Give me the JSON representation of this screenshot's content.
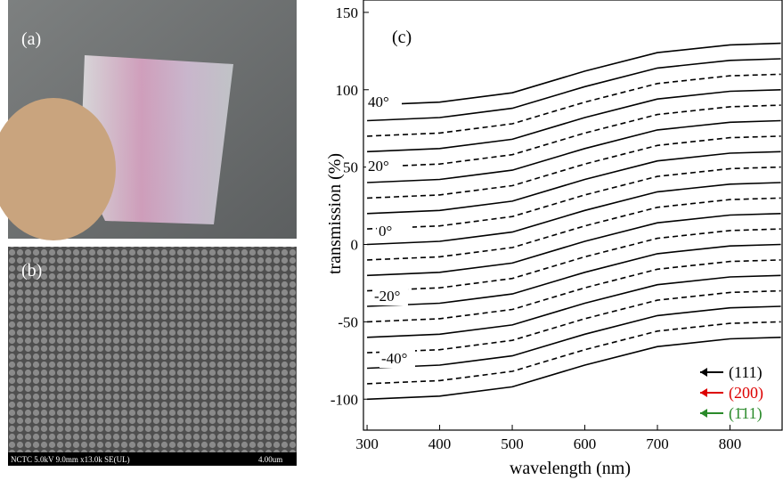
{
  "panels": {
    "a": "(a)",
    "b": "(b)",
    "sem_info": "NCTC 5.0kV 9.0mm x13.0k SE(UL)",
    "sem_scale": "4.00um"
  },
  "chart_data": {
    "type": "line",
    "panel_label": "(c)",
    "x_label": "wavelength (nm)",
    "y_label": "transmission (%)",
    "xlim": [
      295,
      873
    ],
    "ylim": [
      -120,
      158
    ],
    "xticks": [
      300,
      400,
      500,
      600,
      700,
      800
    ],
    "yticks": [
      -100,
      -50,
      0,
      50,
      100,
      150
    ],
    "x": [
      300,
      400,
      500,
      600,
      700,
      800,
      870
    ],
    "series": [
      {
        "color": "#000",
        "dashed": false,
        "values": [
          -100,
          -98,
          -92,
          -78,
          -66,
          -61,
          -60
        ]
      },
      {
        "color": "#000",
        "dashed": true,
        "values": [
          -90,
          -88,
          -82,
          -68,
          -56,
          -51,
          -50
        ]
      },
      {
        "color": "#000",
        "dashed": false,
        "values": [
          -80,
          -78,
          -72,
          -58,
          -46,
          -41,
          -40
        ]
      },
      {
        "color": "#000",
        "dashed": true,
        "values": [
          -70,
          -68,
          -62,
          -48,
          -36,
          -31,
          -30
        ]
      },
      {
        "color": "#000",
        "dashed": false,
        "values": [
          -60,
          -58,
          -52,
          -38,
          -26,
          -21,
          -20
        ]
      },
      {
        "color": "#000",
        "dashed": true,
        "values": [
          -50,
          -48,
          -42,
          -28,
          -16,
          -11,
          -10
        ]
      },
      {
        "color": "#000",
        "dashed": false,
        "values": [
          -40,
          -38,
          -32,
          -18,
          -6,
          -1,
          0
        ]
      },
      {
        "color": "#000",
        "dashed": true,
        "values": [
          -30,
          -28,
          -22,
          -8,
          4,
          9,
          10
        ]
      },
      {
        "color": "#000",
        "dashed": false,
        "values": [
          -20,
          -18,
          -12,
          2,
          14,
          19,
          20
        ]
      },
      {
        "color": "#000",
        "dashed": true,
        "values": [
          -10,
          -8,
          -2,
          12,
          24,
          29,
          30
        ]
      },
      {
        "color": "#000",
        "dashed": false,
        "values": [
          0,
          2,
          8,
          22,
          34,
          39,
          40
        ]
      },
      {
        "color": "#000",
        "dashed": true,
        "values": [
          10,
          12,
          18,
          32,
          44,
          49,
          50
        ]
      },
      {
        "color": "#000",
        "dashed": false,
        "values": [
          20,
          22,
          28,
          42,
          54,
          59,
          60
        ]
      },
      {
        "color": "#000",
        "dashed": true,
        "values": [
          30,
          32,
          38,
          52,
          64,
          69,
          70
        ]
      },
      {
        "color": "#000",
        "dashed": false,
        "values": [
          40,
          42,
          48,
          62,
          74,
          79,
          80
        ]
      },
      {
        "color": "#000",
        "dashed": true,
        "values": [
          50,
          52,
          58,
          72,
          84,
          89,
          90
        ]
      },
      {
        "color": "#000",
        "dashed": false,
        "values": [
          60,
          62,
          68,
          82,
          94,
          99,
          100
        ]
      },
      {
        "color": "#000",
        "dashed": true,
        "values": [
          70,
          72,
          78,
          92,
          104,
          109,
          110
        ]
      },
      {
        "color": "#000",
        "dashed": false,
        "values": [
          80,
          82,
          88,
          102,
          114,
          119,
          120
        ]
      },
      {
        "color": "#000",
        "dashed": false,
        "values": [
          90,
          92,
          98,
          112,
          124,
          129,
          130
        ]
      }
    ],
    "annotations": [
      "40°",
      "20°",
      "0°",
      "-20°",
      "-40°"
    ],
    "legend": [
      {
        "label": "(111)",
        "color": "#000"
      },
      {
        "label": "(200)",
        "color": "#d00"
      },
      {
        "label": "(1̄11)",
        "color": "#2a8a2a"
      }
    ]
  }
}
